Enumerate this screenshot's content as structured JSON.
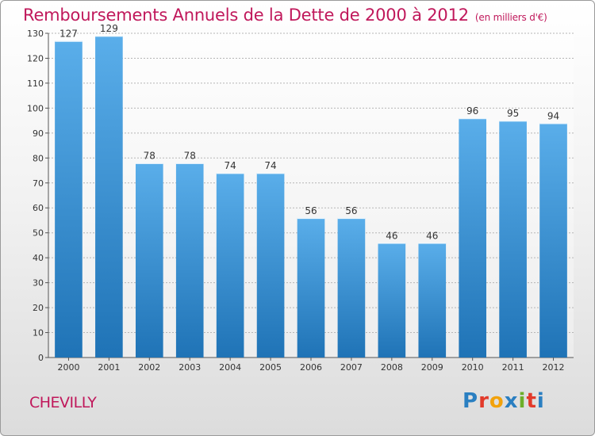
{
  "header": {
    "title": "Remboursements Annuels de la Dette de 2000 à 2012",
    "unit": "(en milliers d'€)"
  },
  "footer": {
    "place": "CHEVILLY",
    "logo_letters": [
      "P",
      "r",
      "o",
      "x",
      "i",
      "t",
      "i"
    ]
  },
  "colors": {
    "title": "#c0185b",
    "bar_light": "#5aaeea",
    "bar_dark": "#1f73b6"
  },
  "chart_data": {
    "type": "bar",
    "title": "Remboursements Annuels de la Dette de 2000 à 2012",
    "xlabel": "",
    "ylabel": "",
    "categories": [
      "2000",
      "2001",
      "2002",
      "2003",
      "2004",
      "2005",
      "2006",
      "2007",
      "2008",
      "2009",
      "2010",
      "2011",
      "2012"
    ],
    "values": [
      127,
      129,
      78,
      78,
      74,
      74,
      56,
      56,
      46,
      46,
      96,
      95,
      94
    ],
    "ylim": [
      0,
      130
    ],
    "yticks": [
      0,
      10,
      20,
      30,
      40,
      50,
      60,
      70,
      80,
      90,
      100,
      110,
      120,
      130
    ],
    "grid": true
  }
}
